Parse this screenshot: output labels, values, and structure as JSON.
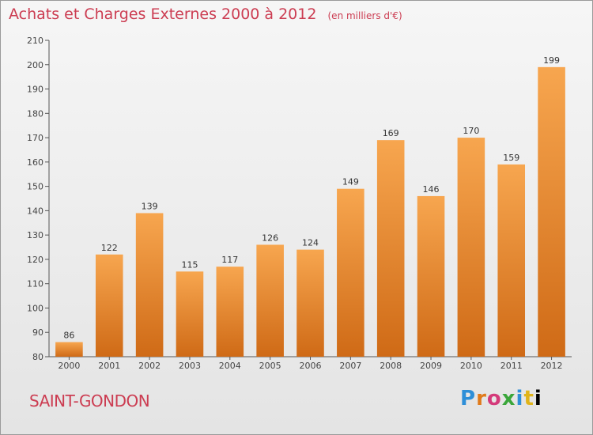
{
  "header": {
    "title": "Achats et Charges Externes 2000 à 2012",
    "subtitle": "(en milliers d'€)"
  },
  "footer": {
    "commune": "SAINT-GONDON",
    "brand": "Proxiti"
  },
  "colors": {
    "bar_light": "#f7a64f",
    "bar_dark": "#cf6a16",
    "title": "#cc3d52"
  },
  "chart_data": {
    "type": "bar",
    "categories": [
      "2000",
      "2001",
      "2002",
      "2003",
      "2004",
      "2005",
      "2006",
      "2007",
      "2008",
      "2009",
      "2010",
      "2011",
      "2012"
    ],
    "values": [
      86,
      122,
      139,
      115,
      117,
      126,
      124,
      149,
      169,
      146,
      170,
      159,
      199
    ],
    "title": "Achats et Charges Externes 2000 à 2012",
    "subtitle": "(en milliers d'€)",
    "xlabel": "",
    "ylabel": "",
    "ylim": [
      80,
      210
    ],
    "yticks": [
      80,
      90,
      100,
      110,
      120,
      130,
      140,
      150,
      160,
      170,
      180,
      190,
      200,
      210
    ],
    "grid": false,
    "data_labels": true
  }
}
